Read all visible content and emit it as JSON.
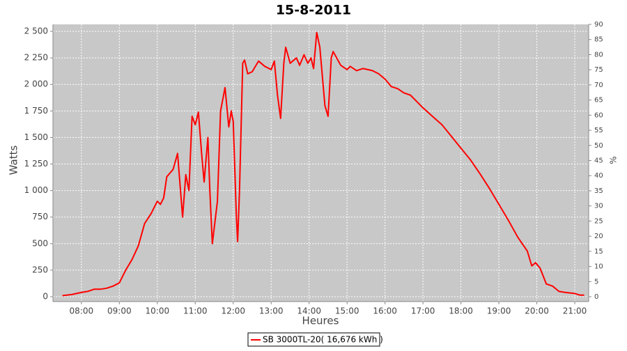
{
  "chart_data": {
    "type": "line",
    "title": "15-8-2011",
    "xlabel": "Heures",
    "ylabel": "Watts",
    "y2label": "%",
    "x": [
      "07:30",
      "07:45",
      "08:00",
      "08:10",
      "08:20",
      "08:30",
      "08:40",
      "08:50",
      "09:00",
      "09:10",
      "09:20",
      "09:30",
      "09:40",
      "09:50",
      "10:00",
      "10:05",
      "10:10",
      "10:15",
      "10:25",
      "10:32",
      "10:36",
      "10:40",
      "10:45",
      "10:50",
      "10:55",
      "11:00",
      "11:05",
      "11:10",
      "11:14",
      "11:20",
      "11:23",
      "11:27",
      "11:35",
      "11:40",
      "11:47",
      "11:53",
      "11:57",
      "12:00",
      "12:05",
      "12:07",
      "12:10",
      "12:15",
      "12:18",
      "12:23",
      "12:30",
      "12:40",
      "12:50",
      "13:00",
      "13:05",
      "13:10",
      "13:15",
      "13:20",
      "13:23",
      "13:30",
      "13:40",
      "13:45",
      "13:52",
      "13:58",
      "14:03",
      "14:07",
      "14:12",
      "14:17",
      "14:25",
      "14:30",
      "14:35",
      "14:38",
      "14:50",
      "15:00",
      "15:05",
      "15:15",
      "15:25",
      "15:40",
      "15:50",
      "16:00",
      "16:10",
      "16:20",
      "16:30",
      "16:40",
      "16:50",
      "17:00",
      "17:15",
      "17:30",
      "17:45",
      "18:00",
      "18:15",
      "18:30",
      "18:45",
      "19:00",
      "19:15",
      "19:30",
      "19:45",
      "19:52",
      "19:58",
      "20:05",
      "20:15",
      "20:25",
      "20:35",
      "20:45",
      "21:00",
      "21:08",
      "21:15"
    ],
    "series": [
      {
        "name": "SB 3000TL-20( 16,676 kWh  )",
        "color": "#ff0000",
        "values": [
          10,
          20,
          40,
          50,
          70,
          70,
          80,
          100,
          130,
          250,
          350,
          480,
          690,
          780,
          900,
          870,
          930,
          1130,
          1200,
          1350,
          1050,
          750,
          1150,
          1000,
          1700,
          1620,
          1740,
          1350,
          1080,
          1500,
          1000,
          500,
          900,
          1750,
          1970,
          1600,
          1750,
          1650,
          750,
          520,
          1000,
          2200,
          2230,
          2100,
          2120,
          2220,
          2170,
          2140,
          2220,
          1900,
          1680,
          2200,
          2350,
          2200,
          2250,
          2180,
          2280,
          2200,
          2250,
          2150,
          2490,
          2350,
          1800,
          1700,
          2250,
          2310,
          2180,
          2140,
          2170,
          2130,
          2150,
          2130,
          2100,
          2050,
          1980,
          1960,
          1920,
          1900,
          1840,
          1780,
          1700,
          1620,
          1510,
          1400,
          1290,
          1160,
          1020,
          870,
          720,
          560,
          430,
          290,
          320,
          270,
          120,
          100,
          50,
          40,
          30,
          15,
          15
        ]
      }
    ],
    "xlim": [
      "07:15",
      "21:22"
    ],
    "xticks": [
      "08:00",
      "09:00",
      "10:00",
      "11:00",
      "12:00",
      "13:00",
      "14:00",
      "15:00",
      "16:00",
      "17:00",
      "18:00",
      "19:00",
      "20:00",
      "21:00"
    ],
    "ylim": [
      -46,
      2566
    ],
    "yticks": [
      0,
      250,
      500,
      750,
      {
        "value": 1000,
        "label": "1 000"
      },
      {
        "value": 1250,
        "label": "1 250"
      },
      {
        "value": 1500,
        "label": "1 500"
      },
      {
        "value": 1750,
        "label": "1 750"
      },
      {
        "value": 2000,
        "label": "2 000"
      },
      {
        "value": 2250,
        "label": "2 250"
      },
      {
        "value": 2500,
        "label": "2 500"
      }
    ],
    "y2lim": [
      -1.6,
      90
    ],
    "y2ticks": [
      0,
      5,
      10,
      15,
      20,
      25,
      30,
      35,
      40,
      45,
      50,
      55,
      60,
      65,
      70,
      75,
      80,
      85,
      90
    ],
    "grid": true
  }
}
